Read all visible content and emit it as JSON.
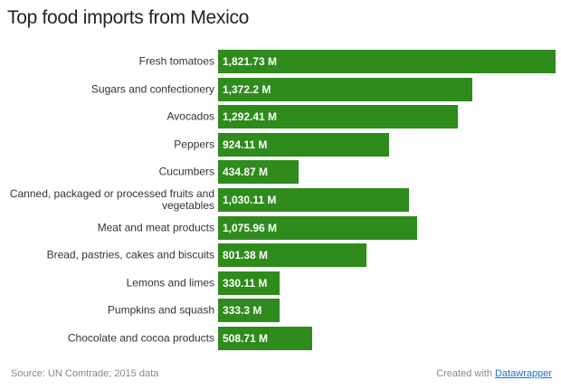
{
  "chart_data": {
    "type": "bar",
    "orientation": "horizontal",
    "title": "Top food imports from Mexico",
    "categories": [
      "Fresh tomatoes",
      "Sugars and confectionery",
      "Avocados",
      "Peppers",
      "Cucumbers",
      "Canned, packaged or processed fruits and vegetables",
      "Meat and meat products",
      "Bread, pastries, cakes and biscuits",
      "Lemons and limes",
      "Pumpkins and squash",
      "Chocolate and cocoa products"
    ],
    "values": [
      1821.73,
      1372.2,
      1292.41,
      924.11,
      434.87,
      1030.11,
      1075.96,
      801.38,
      330.11,
      333.3,
      508.71
    ],
    "value_labels": [
      "1,821.73 M",
      "1,372.2 M",
      "1,292.41 M",
      "924.11 M",
      "434.87 M",
      "1,030.11 M",
      "1,075.96 M",
      "801.38 M",
      "330.11 M",
      "333.3 M",
      "508.71 M"
    ],
    "color": "#2e8b1c",
    "source": "Source: UN Comtrade; 2015 data",
    "credit": "Created with",
    "credit_link": "Datawrapper"
  }
}
